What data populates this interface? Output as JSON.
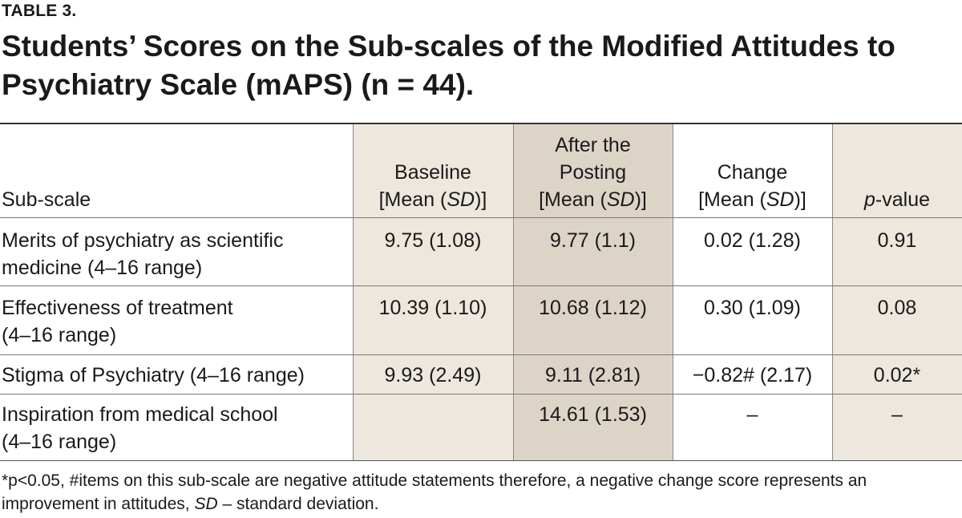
{
  "table_label": "TABLE 3.",
  "title_line1": "Students’ Scores on the Sub-scales of the Modified Attitudes to",
  "title_line2": "Psychiatry Scale (mAPS) (n = 44).",
  "headers": {
    "subscale": "Sub-scale",
    "baseline_l1": "Baseline",
    "baseline_l2_pre": "[Mean (",
    "sd": "SD",
    "l2_post": ")]",
    "after_l1": "After the",
    "after_l2": "Posting",
    "change_l1": "Change",
    "p_italic": "p",
    "p_rest": "-value"
  },
  "rows": [
    {
      "subscale_l1": "Merits of psychiatry as scientific",
      "subscale_l2": "medicine (4–16 range)",
      "baseline": "9.75 (1.08)",
      "after": "9.77 (1.1)",
      "change": "0.02 (1.28)",
      "p": "0.91"
    },
    {
      "subscale_l1": "Effectiveness of treatment",
      "subscale_l2": "(4–16 range)",
      "baseline": "10.39 (1.10)",
      "after": "10.68 (1.12)",
      "change": "0.30 (1.09)",
      "p": "0.08"
    },
    {
      "subscale_l1": "Stigma of Psychiatry (4–16 range)",
      "subscale_l2": "",
      "baseline": "9.93 (2.49)",
      "after": "9.11 (2.81)",
      "change": "−0.82# (2.17)",
      "p": "0.02*"
    },
    {
      "subscale_l1": "Inspiration from medical school",
      "subscale_l2": "(4–16 range)",
      "baseline": "",
      "after": "14.61 (1.53)",
      "change": "–",
      "p": "–"
    }
  ],
  "footnote_pre": "*p<0.05, #items on this sub-scale are negative attitude statements therefore, a negative change score represents an improvement in attitudes, ",
  "footnote_sd": "SD",
  "footnote_post": " – standard deviation.",
  "colors": {
    "baseline_shade": "#ede7de",
    "after_shade": "#ddd4c8",
    "p_shade": "#ede7de"
  }
}
